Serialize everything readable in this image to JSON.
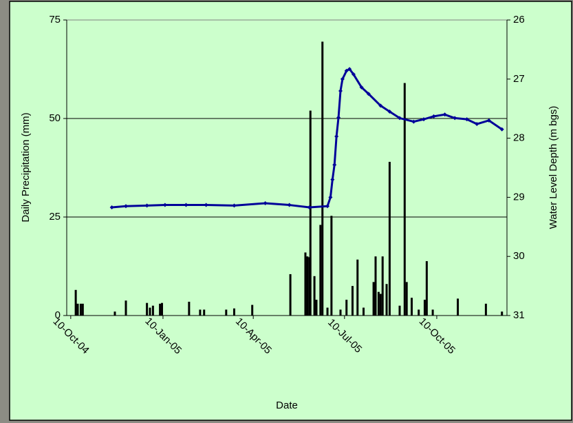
{
  "chart_data": {
    "type": "bar-line",
    "x_label": "Date",
    "y_label": "Daily Precipitation (mm)",
    "y2_label": "Water Level Depth (m bgs)",
    "xlim": [
      "2004-10-06",
      "2005-12-19"
    ],
    "xticks": [
      {
        "value": "2004-10-10",
        "label": "10-Oct-04"
      },
      {
        "value": "2005-01-10",
        "label": "10-Jan-05"
      },
      {
        "value": "2005-04-10",
        "label": "10-Apr-05"
      },
      {
        "value": "2005-07-10",
        "label": "10-Jul-05"
      },
      {
        "value": "2005-10-10",
        "label": "10-Oct-05"
      }
    ],
    "ylim": [
      0,
      75
    ],
    "yticks": [
      0,
      25,
      50,
      75
    ],
    "y2lim": [
      26,
      31
    ],
    "y2ticks": [
      26,
      27,
      28,
      29,
      30,
      31
    ],
    "y2_inverted": true,
    "grid": true,
    "series": [
      {
        "type": "bar",
        "color": "#000000",
        "x": [
          "2004-10-15",
          "2004-10-17",
          "2004-10-20",
          "2004-10-22",
          "2004-11-23",
          "2004-12-04",
          "2004-12-25",
          "2004-12-28",
          "2004-12-31",
          "2005-01-07",
          "2005-01-09",
          "2005-02-05",
          "2005-02-16",
          "2005-02-20",
          "2005-03-14",
          "2005-03-22",
          "2005-04-09",
          "2005-05-17",
          "2005-06-01",
          "2005-06-03",
          "2005-06-05",
          "2005-06-06",
          "2005-06-10",
          "2005-06-12",
          "2005-06-16",
          "2005-06-18",
          "2005-06-23",
          "2005-06-27",
          "2005-07-06",
          "2005-07-12",
          "2005-07-18",
          "2005-07-23",
          "2005-07-29",
          "2005-08-08",
          "2005-08-10",
          "2005-08-13",
          "2005-08-15",
          "2005-08-17",
          "2005-08-21",
          "2005-08-24",
          "2005-09-03",
          "2005-09-08",
          "2005-09-10",
          "2005-09-15",
          "2005-09-22",
          "2005-09-28",
          "2005-09-30",
          "2005-10-06",
          "2005-10-31",
          "2005-11-28",
          "2005-12-14"
        ],
        "values": [
          6.5,
          3,
          3,
          3,
          1,
          3.8,
          3.2,
          2,
          2.5,
          3,
          3.2,
          3.5,
          1.5,
          1.5,
          1.5,
          1.8,
          2.7,
          10.5,
          16,
          15,
          14.8,
          52,
          10,
          4,
          23,
          69.5,
          2,
          25.3,
          1.5,
          4,
          7.5,
          14.2,
          2,
          8.5,
          15,
          6,
          5.5,
          15,
          8,
          39,
          2.5,
          59,
          8.5,
          4.5,
          1.5,
          4,
          13.8,
          1.5,
          4.3,
          3,
          1
        ]
      },
      {
        "type": "line",
        "axis": "y2",
        "color": "#000099",
        "x": [
          "2004-11-20",
          "2004-12-04",
          "2004-12-25",
          "2005-01-12",
          "2005-02-02",
          "2005-02-22",
          "2005-03-22",
          "2005-04-22",
          "2005-05-16",
          "2005-06-05",
          "2005-06-23",
          "2005-06-26",
          "2005-06-28",
          "2005-06-30",
          "2005-07-02",
          "2005-07-04",
          "2005-07-06",
          "2005-07-08",
          "2005-07-12",
          "2005-07-15",
          "2005-07-19",
          "2005-07-27",
          "2005-08-03",
          "2005-08-15",
          "2005-08-24",
          "2005-09-03",
          "2005-09-17",
          "2005-09-27",
          "2005-10-07",
          "2005-10-18",
          "2005-10-28",
          "2005-11-09",
          "2005-11-19",
          "2005-12-01",
          "2005-12-14"
        ],
        "values": [
          29.17,
          29.15,
          29.14,
          29.13,
          29.13,
          29.13,
          29.14,
          29.1,
          29.13,
          29.17,
          29.15,
          29.0,
          28.7,
          28.45,
          27.97,
          27.65,
          27.2,
          27.0,
          26.86,
          26.83,
          26.92,
          27.14,
          27.25,
          27.45,
          27.55,
          27.66,
          27.72,
          27.68,
          27.63,
          27.6,
          27.66,
          27.68,
          27.76,
          27.7,
          27.85
        ]
      }
    ]
  }
}
